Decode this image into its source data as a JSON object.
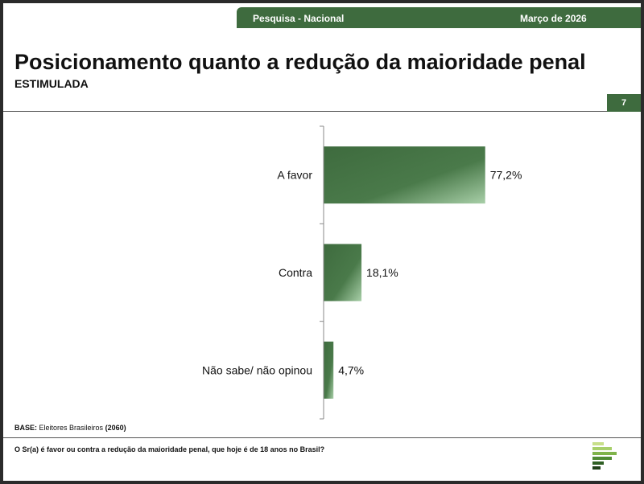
{
  "header": {
    "survey": "Pesquisa - Nacional",
    "date": "Março de 2026"
  },
  "title": "Posicionamento quanto a redução da maioridade penal",
  "subtitle": "ESTIMULADA",
  "page_number": "7",
  "footer": {
    "base_label": "BASE:",
    "base_text": "Eleitores Brasileiros",
    "base_count": "(2060)",
    "question": "O Sr(a) é favor ou contra a redução da maioridade penal, que hoje é de 18 anos no Brasil?"
  },
  "colors": {
    "accent": "#3e6b3e",
    "bar_light": "#a8cfa8"
  },
  "chart_data": {
    "type": "bar",
    "orientation": "horizontal",
    "categories": [
      "A favor",
      "Contra",
      "Não sabe/ não opinou"
    ],
    "values": [
      77.2,
      18.1,
      4.7
    ],
    "value_labels": [
      "77,2%",
      "18,1%",
      "4,7%"
    ],
    "xlim": [
      0,
      100
    ],
    "grid": false,
    "legend": "none"
  }
}
